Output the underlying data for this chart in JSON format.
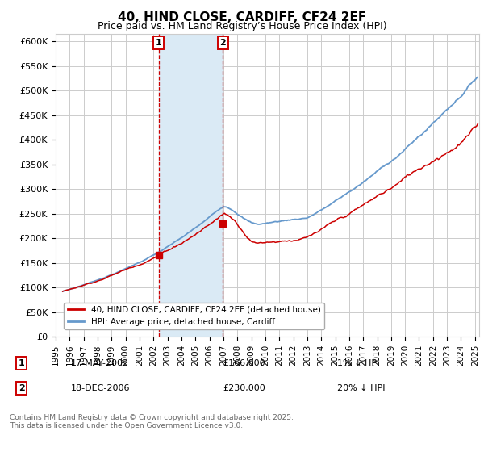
{
  "title": "40, HIND CLOSE, CARDIFF, CF24 2EF",
  "subtitle": "Price paid vs. HM Land Registry’s House Price Index (HPI)",
  "ylabel_ticks": [
    "£0",
    "£50K",
    "£100K",
    "£150K",
    "£200K",
    "£250K",
    "£300K",
    "£350K",
    "£400K",
    "£450K",
    "£500K",
    "£550K",
    "£600K"
  ],
  "ytick_values": [
    0,
    50000,
    100000,
    150000,
    200000,
    250000,
    300000,
    350000,
    400000,
    450000,
    500000,
    550000,
    600000
  ],
  "ylim": [
    0,
    615000
  ],
  "xlim_start": 1995.3,
  "xlim_end": 2025.3,
  "transaction1_year": 2002.37,
  "transaction2_year": 2006.96,
  "transaction1_price": 166000,
  "transaction2_price": 230000,
  "transaction1_label": "1",
  "transaction2_label": "2",
  "transaction1_date": "17-MAY-2002",
  "transaction2_date": "18-DEC-2006",
  "transaction1_pct": "1% ↓ HPI",
  "transaction2_pct": "20% ↓ HPI",
  "legend_line1": "40, HIND CLOSE, CARDIFF, CF24 2EF (detached house)",
  "legend_line2": "HPI: Average price, detached house, Cardiff",
  "footnote": "Contains HM Land Registry data © Crown copyright and database right 2025.\nThis data is licensed under the Open Government Licence v3.0.",
  "line_color_red": "#cc0000",
  "line_color_blue": "#6699cc",
  "shade_color": "#daeaf5",
  "marker_box_color": "#cc0000",
  "grid_color": "#cccccc",
  "background_color": "#ffffff"
}
